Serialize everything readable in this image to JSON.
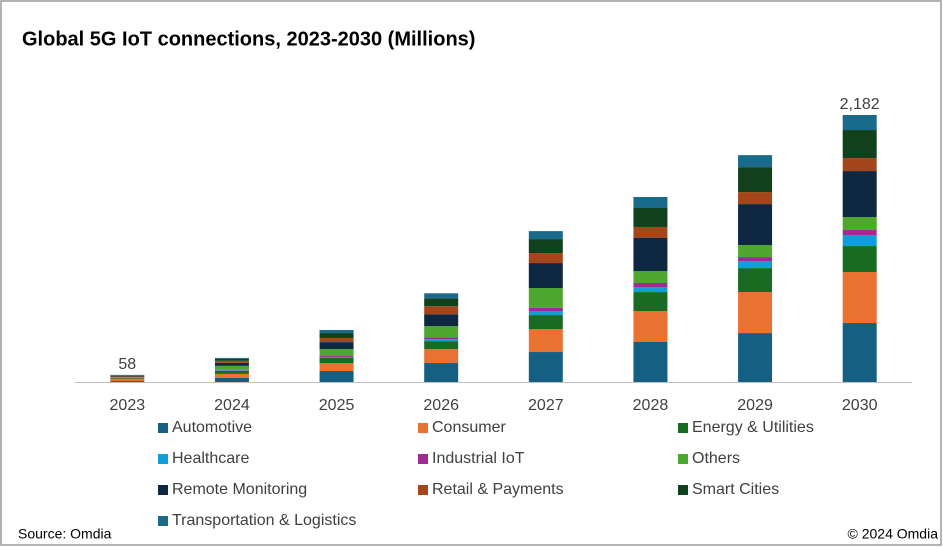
{
  "chart_data": {
    "type": "stacked_bar",
    "title": "Global 5G IoT connections,  2023-2030 (Millions)",
    "categories": [
      "2023",
      "2024",
      "2025",
      "2026",
      "2027",
      "2028",
      "2029",
      "2030"
    ],
    "series": [
      {
        "name": "Automotive",
        "color": "#156082",
        "values": [
          8,
          33,
          90,
          155,
          245,
          327,
          400,
          482
        ]
      },
      {
        "name": "Consumer",
        "color": "#e97132",
        "values": [
          20,
          33,
          65,
          114,
          188,
          253,
          335,
          417
        ]
      },
      {
        "name": "Energy & Utilities",
        "color": "#196b24",
        "values": [
          6,
          25,
          41,
          65,
          114,
          155,
          196,
          212
        ]
      },
      {
        "name": "Healthcare",
        "color": "#0f9ed5",
        "values": [
          1,
          4,
          8,
          16,
          33,
          41,
          57,
          90
        ]
      },
      {
        "name": "Industrial IoT",
        "color": "#a02b93",
        "values": [
          1,
          4,
          8,
          16,
          25,
          33,
          33,
          41
        ]
      },
      {
        "name": "Others",
        "color": "#4ea72e",
        "values": [
          4,
          33,
          57,
          90,
          163,
          98,
          98,
          106
        ]
      },
      {
        "name": "Remote Monitoring",
        "color": "#0e2841",
        "values": [
          6,
          25,
          57,
          98,
          204,
          270,
          335,
          376
        ]
      },
      {
        "name": "Retail & Payments",
        "color": "#a5461a",
        "values": [
          4,
          16,
          33,
          65,
          82,
          90,
          98,
          106
        ]
      },
      {
        "name": "Smart Cities",
        "color": "#10401c",
        "values": [
          5,
          16,
          41,
          65,
          114,
          155,
          204,
          229
        ]
      },
      {
        "name": "Transportation & Logistics",
        "color": "#1a6a8c",
        "values": [
          3,
          8,
          25,
          41,
          65,
          90,
          98,
          123
        ]
      }
    ],
    "total_labels": [
      {
        "category": "2023",
        "value": 58
      },
      {
        "category": "2030",
        "value": 2182,
        "label": "2,182"
      }
    ],
    "source": "Source: Omdia",
    "copyright": "© 2024 Omdia"
  }
}
